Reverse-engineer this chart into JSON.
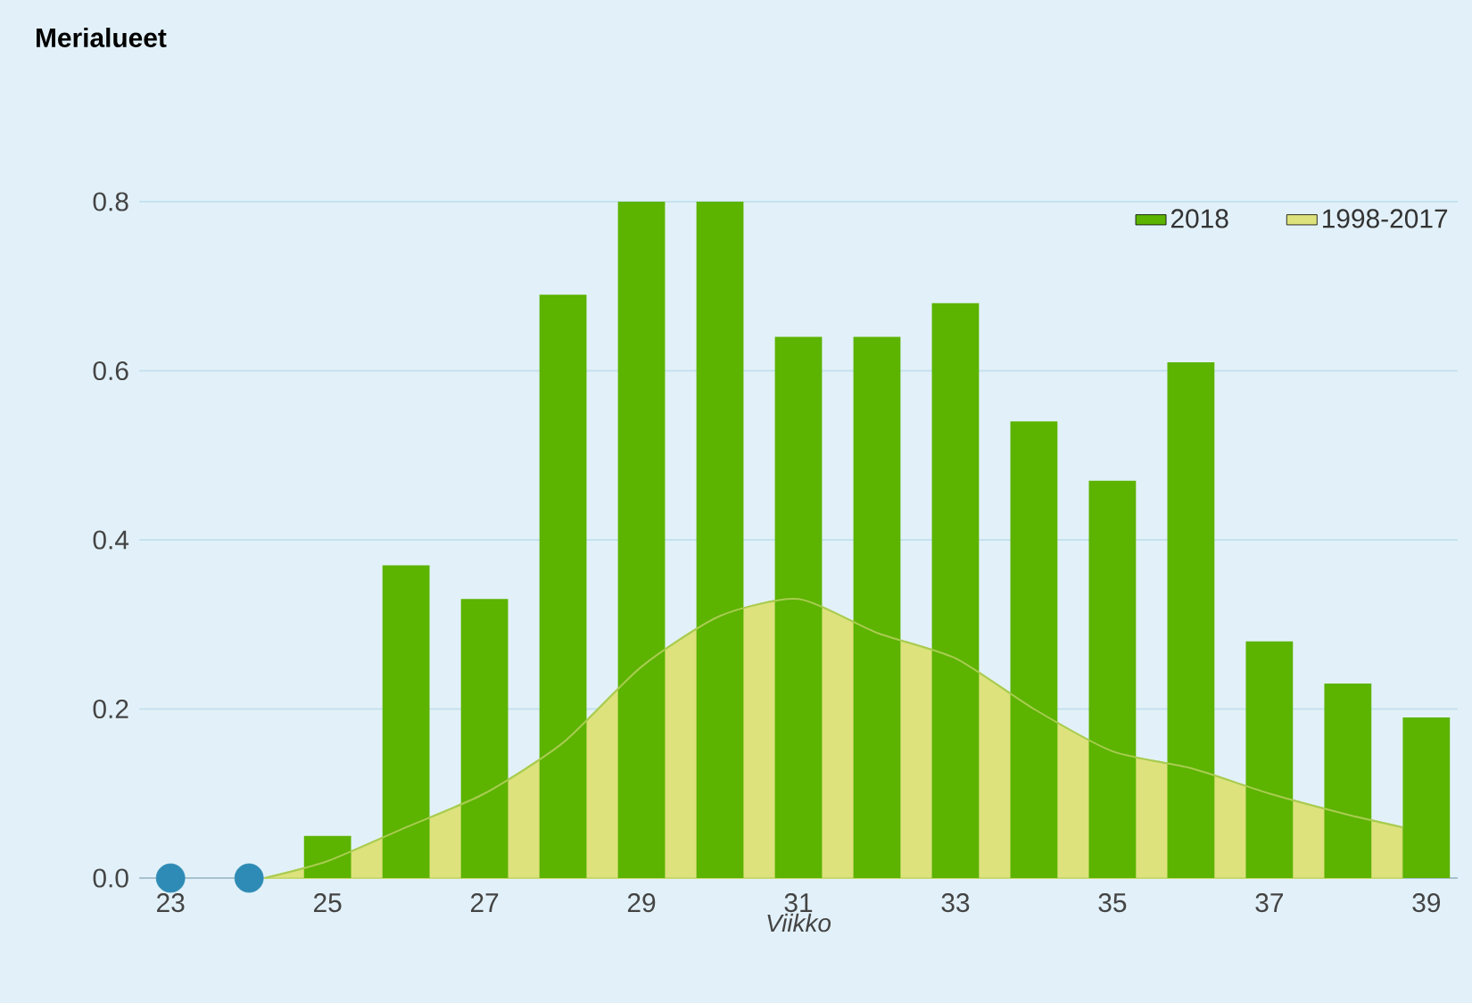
{
  "chart_data": {
    "type": "bar",
    "title": "Merialueet",
    "xlabel": "Viikko",
    "xlim": [
      22.6,
      39.4
    ],
    "xticks": [
      23,
      25,
      27,
      29,
      31,
      33,
      35,
      37,
      39
    ],
    "ylim": [
      0,
      0.8
    ],
    "yticks": [
      {
        "value": 0,
        "label": "0.0"
      },
      0.2,
      0.4,
      0.6,
      0.8
    ],
    "grid": "y",
    "legend": "top right",
    "series": [
      {
        "name": "2018",
        "type": "bar",
        "color": "#5cb300",
        "x": [
          23,
          24,
          25,
          26,
          27,
          28,
          29,
          30,
          31,
          32,
          33,
          34,
          35,
          36,
          37,
          38,
          39
        ],
        "values": [
          0,
          0,
          0.05,
          0.37,
          0.33,
          0.69,
          0.8,
          0.8,
          0.64,
          0.64,
          0.68,
          0.54,
          0.47,
          0.61,
          0.28,
          0.23,
          0.19
        ]
      },
      {
        "name": "1998-2017",
        "type": "area",
        "color": "#dde27c",
        "x": [
          24.2,
          25,
          26,
          27,
          28,
          29,
          30,
          31,
          32,
          33,
          34,
          35,
          36,
          37,
          38,
          38.7
        ],
        "values": [
          0,
          0.02,
          0.06,
          0.1,
          0.16,
          0.25,
          0.31,
          0.33,
          0.29,
          0.26,
          0.2,
          0.15,
          0.13,
          0.1,
          0.075,
          0.06
        ]
      },
      {
        "type": "scatter",
        "color": "#2e8bb5",
        "x": [
          23,
          24
        ],
        "values": [
          0,
          0
        ]
      }
    ]
  }
}
